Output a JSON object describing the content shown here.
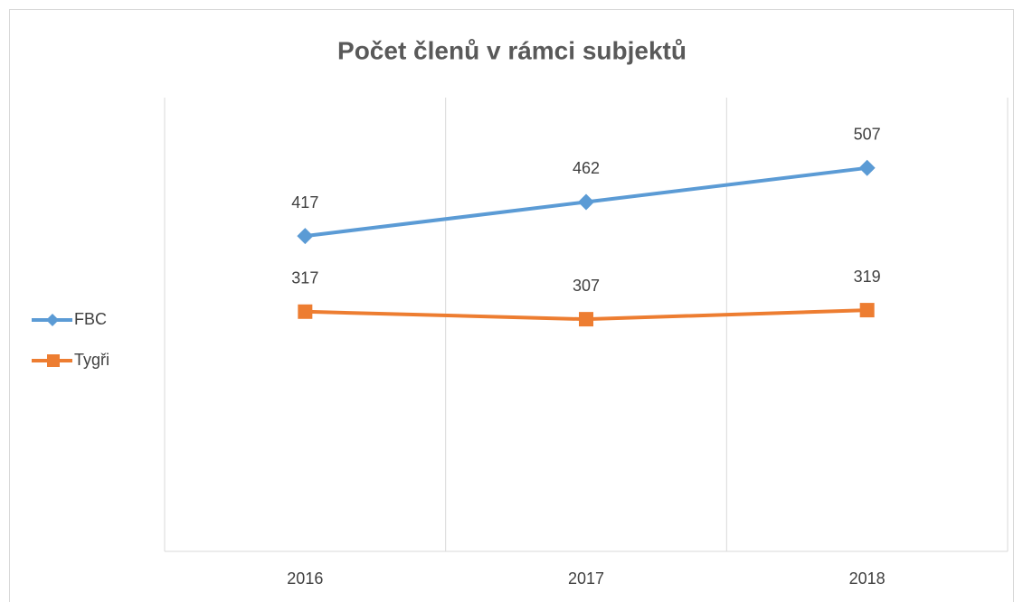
{
  "chart_data": {
    "type": "line",
    "title": "Počet členů v rámci subjektů",
    "categories": [
      "2016",
      "2017",
      "2018"
    ],
    "series": [
      {
        "name": "FBC",
        "color": "#5b9bd5",
        "marker": "diamond",
        "values": [
          417,
          462,
          507
        ]
      },
      {
        "name": "Tygři",
        "color": "#ed7d31",
        "marker": "square",
        "values": [
          317,
          307,
          319
        ]
      }
    ],
    "ylim": [
      0,
      600
    ],
    "grid": true,
    "data_labels": true,
    "legend": "left"
  }
}
